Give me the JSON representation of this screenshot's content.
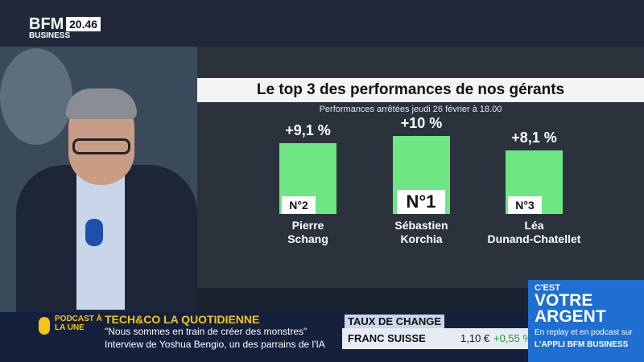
{
  "header": {
    "logo": "BFM",
    "logo_sub": "BUSINESS",
    "time": "20.46"
  },
  "chart_data": {
    "type": "bar",
    "title": "Le top 3 des performances de nos gérants",
    "subtitle": "Performances arrêtées jeudi 26 février à 18.00",
    "categories": [
      "Pierre\nSchang",
      "Sébastien\nKorchia",
      "Léa\nDunand-Chatellet"
    ],
    "values": [
      9.1,
      10,
      8.1
    ],
    "value_labels": [
      "+9,1 %",
      "+10 %",
      "+8,1 %"
    ],
    "ranks": [
      "N°2",
      "N°1",
      "N°3"
    ],
    "color": "#6fe684"
  },
  "ticker": {
    "badge": "PODCAST À LA UNE",
    "show": "TECH&CO LA QUOTIDIENNE",
    "line1": "\"Nous sommes en train de créer des monstres\"",
    "line2": "Interview de Yoshua Bengio, un des parrains de l'IA"
  },
  "exchange": {
    "heading": "TAUX DE CHANGE",
    "name": "FRANC SUISSE",
    "rate": "1,10 €",
    "change": "+0,55 %"
  },
  "promo": {
    "line1": "C'EST",
    "line2": "VOTRE",
    "line3": "ARGENT",
    "line4": "En replay et en podcast sur",
    "line5": "L'APPLI BFM BUSINESS"
  }
}
